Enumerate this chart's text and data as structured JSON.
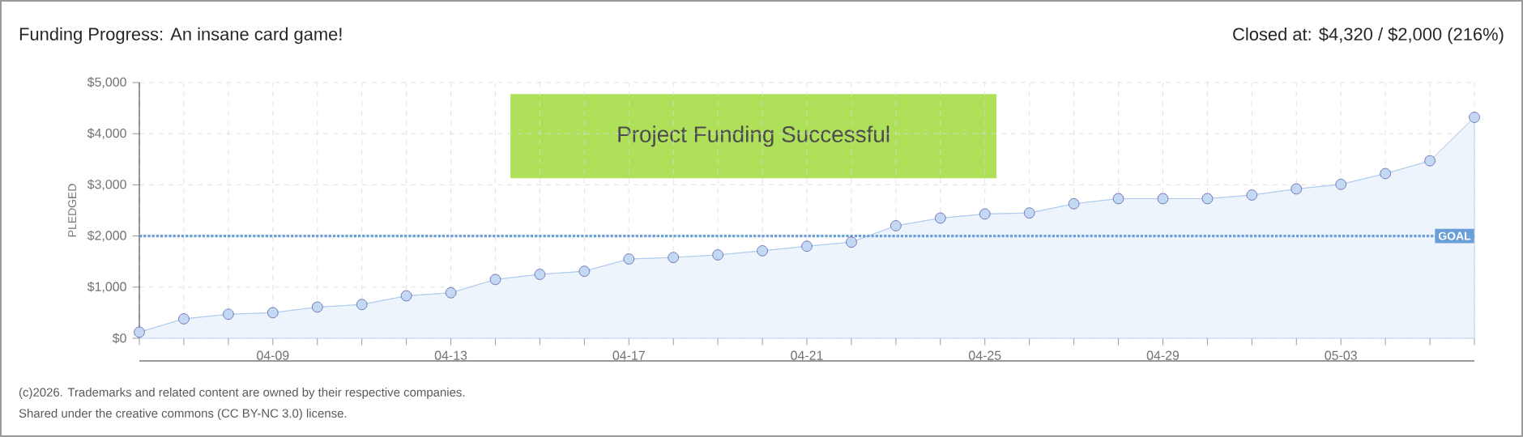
{
  "chart_data": {
    "type": "area",
    "title": "Funding Progress: An insane card game!",
    "subtitle": "Closed at: $4,320 / $2,000 (216%)",
    "ylabel": "PLEDGED",
    "categories": [
      null,
      null,
      null,
      "04-09",
      null,
      null,
      null,
      "04-13",
      null,
      null,
      null,
      "04-17",
      null,
      null,
      null,
      "04-21",
      null,
      null,
      null,
      "04-25",
      null,
      null,
      null,
      "04-29",
      null,
      null,
      null,
      "05-03",
      null,
      null,
      null
    ],
    "series": [
      {
        "color": "#a9c9ee",
        "values": [
          120,
          380,
          470,
          500,
          610,
          660,
          830,
          890,
          1150,
          1250,
          1310,
          1550,
          1580,
          1630,
          1710,
          1800,
          1880,
          2200,
          2350,
          2430,
          2450,
          2630,
          2730,
          2730,
          2730,
          2800,
          2920,
          3010,
          3220,
          3470,
          4320
        ]
      }
    ],
    "ylim": [
      0,
      5000
    ],
    "yticks": [
      {
        "value": 0,
        "label": "$0"
      },
      {
        "value": 1000,
        "label": "$1,000"
      },
      {
        "value": 2000,
        "label": "$2,000"
      },
      {
        "value": 3000,
        "label": "$3,000"
      },
      {
        "value": 4000,
        "label": "$4,000"
      },
      {
        "value": 5000,
        "label": "$5,000"
      }
    ],
    "grid": true,
    "marker": "circle",
    "ref_lines": [
      {
        "axis": "y",
        "value": 2000,
        "label": "GOAL",
        "color": "#6a9fd8",
        "line_style": "dotted"
      }
    ],
    "annotations": [
      "Project Funding Successful",
      "(c)2026. Trademarks and related content are owned by their respective companies.",
      "Shared under the creative commons (CC BY-NC 3.0) license."
    ]
  }
}
